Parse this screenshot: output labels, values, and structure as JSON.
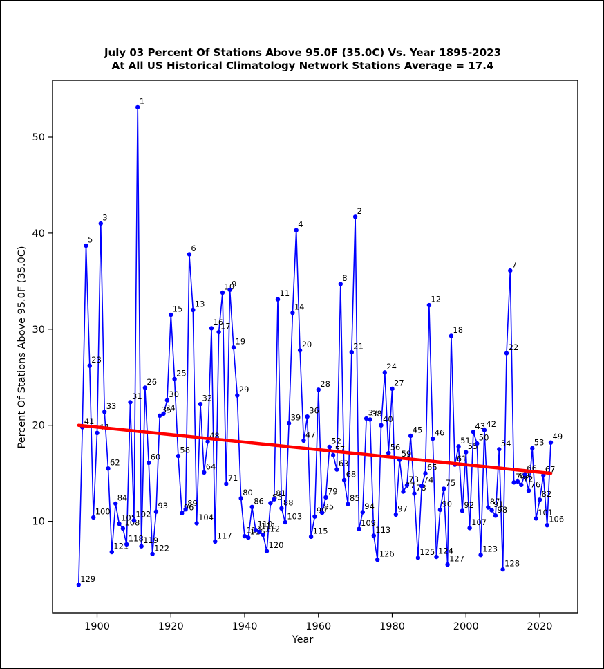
{
  "figure": {
    "title_line1": "July 03 Percent Of Stations Above 95.0F (35.0C) Vs. Year 1895-2023",
    "title_line2": "At All US Historical Climatology Network Stations Average = 17.4",
    "xlabel": "Year",
    "ylabel": "Percent Of Stations Above 95.0F (35.0C)"
  },
  "chart_data": {
    "type": "line",
    "title": "July 03 Percent Of Stations Above 95.0F (35.0C) Vs. Year 1895-2023 At All US Historical Climatology Network Stations Average = 17.4",
    "xlabel": "Year",
    "ylabel": "Percent Of Stations Above 95.0F (35.0C)",
    "average": 17.4,
    "grid": false,
    "legend": "none",
    "x_ticks": [
      1900,
      1920,
      1940,
      1960,
      1980,
      2000,
      2020
    ],
    "y_ticks": [
      10,
      20,
      30,
      40,
      50
    ],
    "xlim": [
      1887.9,
      2030.3
    ],
    "ylim": [
      0.4,
      55.9
    ],
    "line_color": "#0000ff",
    "marker_color": "#0000ff",
    "trend_color": "#ff0000",
    "label_color": "#000000",
    "point_label_meaning": "rank of value, 1 = highest of 1895-2023",
    "trend": {
      "x1": 1895,
      "y1": 20.0,
      "x2": 2023,
      "y2": 15.0
    },
    "columns": [
      "year",
      "rank",
      "value"
    ],
    "points": [
      [
        1895,
        129,
        3.4
      ],
      [
        1896,
        41,
        19.8
      ],
      [
        1897,
        5,
        38.7
      ],
      [
        1898,
        23,
        26.2
      ],
      [
        1899,
        100,
        10.4
      ],
      [
        1900,
        44,
        19.2
      ],
      [
        1901,
        3,
        41.0
      ],
      [
        1902,
        33,
        21.4
      ],
      [
        1903,
        62,
        15.5
      ],
      [
        1904,
        121,
        6.8
      ],
      [
        1905,
        84,
        11.85
      ],
      [
        1906,
        105,
        9.75
      ],
      [
        1907,
        108,
        9.25
      ],
      [
        1908,
        118,
        7.6
      ],
      [
        1909,
        31,
        22.4
      ],
      [
        1910,
        102,
        10.1
      ],
      [
        1911,
        1,
        53.1
      ],
      [
        1912,
        119,
        7.4
      ],
      [
        1913,
        26,
        23.9
      ],
      [
        1914,
        60,
        16.1
      ],
      [
        1915,
        122,
        6.6
      ],
      [
        1916,
        93,
        11.0
      ],
      [
        1917,
        35,
        21.0
      ],
      [
        1918,
        34,
        21.2
      ],
      [
        1919,
        30,
        22.6
      ],
      [
        1920,
        15,
        31.5
      ],
      [
        1921,
        25,
        24.8
      ],
      [
        1922,
        58,
        16.8
      ],
      [
        1923,
        96,
        10.85
      ],
      [
        1924,
        89,
        11.25
      ],
      [
        1925,
        6,
        37.8
      ],
      [
        1926,
        13,
        32.0
      ],
      [
        1927,
        104,
        9.8
      ],
      [
        1928,
        32,
        22.2
      ],
      [
        1929,
        64,
        15.1
      ],
      [
        1930,
        48,
        18.3
      ],
      [
        1931,
        16,
        30.1
      ],
      [
        1932,
        117,
        7.9
      ],
      [
        1933,
        17,
        29.7
      ],
      [
        1934,
        10,
        33.8
      ],
      [
        1935,
        71,
        13.9
      ],
      [
        1936,
        9,
        34.1
      ],
      [
        1937,
        19,
        28.1
      ],
      [
        1938,
        29,
        23.1
      ],
      [
        1939,
        80,
        12.4
      ],
      [
        1940,
        114,
        8.45
      ],
      [
        1941,
        116,
        8.3
      ],
      [
        1942,
        86,
        11.5
      ],
      [
        1943,
        110,
        9.1
      ],
      [
        1944,
        111,
        8.9
      ],
      [
        1945,
        112,
        8.6
      ],
      [
        1946,
        120,
        6.9
      ],
      [
        1947,
        83,
        11.9
      ],
      [
        1948,
        81,
        12.3
      ],
      [
        1949,
        11,
        33.1
      ],
      [
        1950,
        88,
        11.35
      ],
      [
        1951,
        103,
        9.9
      ],
      [
        1952,
        39,
        20.2
      ],
      [
        1953,
        14,
        31.7
      ],
      [
        1954,
        4,
        40.3
      ],
      [
        1955,
        20,
        27.8
      ],
      [
        1956,
        47,
        18.4
      ],
      [
        1957,
        36,
        20.9
      ],
      [
        1958,
        115,
        8.4
      ],
      [
        1959,
        99,
        10.5
      ],
      [
        1960,
        28,
        23.7
      ],
      [
        1961,
        95,
        10.9
      ],
      [
        1962,
        79,
        12.5
      ],
      [
        1963,
        52,
        17.75
      ],
      [
        1964,
        57,
        16.9
      ],
      [
        1965,
        63,
        15.4
      ],
      [
        1966,
        8,
        34.7
      ],
      [
        1967,
        68,
        14.3
      ],
      [
        1968,
        85,
        11.8
      ],
      [
        1969,
        21,
        27.6
      ],
      [
        1970,
        2,
        41.7
      ],
      [
        1971,
        109,
        9.2
      ],
      [
        1972,
        94,
        10.95
      ],
      [
        1973,
        37,
        20.7
      ],
      [
        1974,
        38,
        20.6
      ],
      [
        1975,
        113,
        8.5
      ],
      [
        1976,
        126,
        6.0
      ],
      [
        1977,
        40,
        20.0
      ],
      [
        1978,
        24,
        25.5
      ],
      [
        1979,
        56,
        17.1
      ],
      [
        1980,
        27,
        23.8
      ],
      [
        1981,
        97,
        10.7
      ],
      [
        1982,
        59,
        16.4
      ],
      [
        1983,
        77,
        13.1
      ],
      [
        1984,
        73,
        13.75
      ],
      [
        1985,
        45,
        18.9
      ],
      [
        1986,
        78,
        12.9
      ],
      [
        1987,
        125,
        6.2
      ],
      [
        1988,
        74,
        13.7
      ],
      [
        1989,
        65,
        15.0
      ],
      [
        1990,
        12,
        32.5
      ],
      [
        1991,
        46,
        18.6
      ],
      [
        1992,
        124,
        6.3
      ],
      [
        1993,
        90,
        11.2
      ],
      [
        1994,
        75,
        13.4
      ],
      [
        1995,
        127,
        5.5
      ],
      [
        1996,
        18,
        29.3
      ],
      [
        1997,
        61,
        15.9
      ],
      [
        1998,
        51,
        17.8
      ],
      [
        1999,
        92,
        11.1
      ],
      [
        2000,
        55,
        17.2
      ],
      [
        2001,
        107,
        9.3
      ],
      [
        2002,
        43,
        19.3
      ],
      [
        2003,
        50,
        18.1
      ],
      [
        2004,
        123,
        6.5
      ],
      [
        2005,
        42,
        19.5
      ],
      [
        2006,
        87,
        11.45
      ],
      [
        2007,
        91,
        11.15
      ],
      [
        2008,
        98,
        10.6
      ],
      [
        2009,
        54,
        17.5
      ],
      [
        2010,
        128,
        5.0
      ],
      [
        2011,
        22,
        27.5
      ],
      [
        2012,
        7,
        36.1
      ],
      [
        2013,
        70,
        14.05
      ],
      [
        2014,
        69,
        14.15
      ],
      [
        2015,
        72,
        13.8
      ],
      [
        2016,
        66,
        14.9
      ],
      [
        2017,
        76,
        13.2
      ],
      [
        2018,
        53,
        17.6
      ],
      [
        2019,
        101,
        10.3
      ],
      [
        2020,
        82,
        12.25
      ],
      [
        2021,
        67,
        14.8
      ],
      [
        2022,
        106,
        9.6
      ],
      [
        2023,
        49,
        18.2
      ]
    ]
  }
}
